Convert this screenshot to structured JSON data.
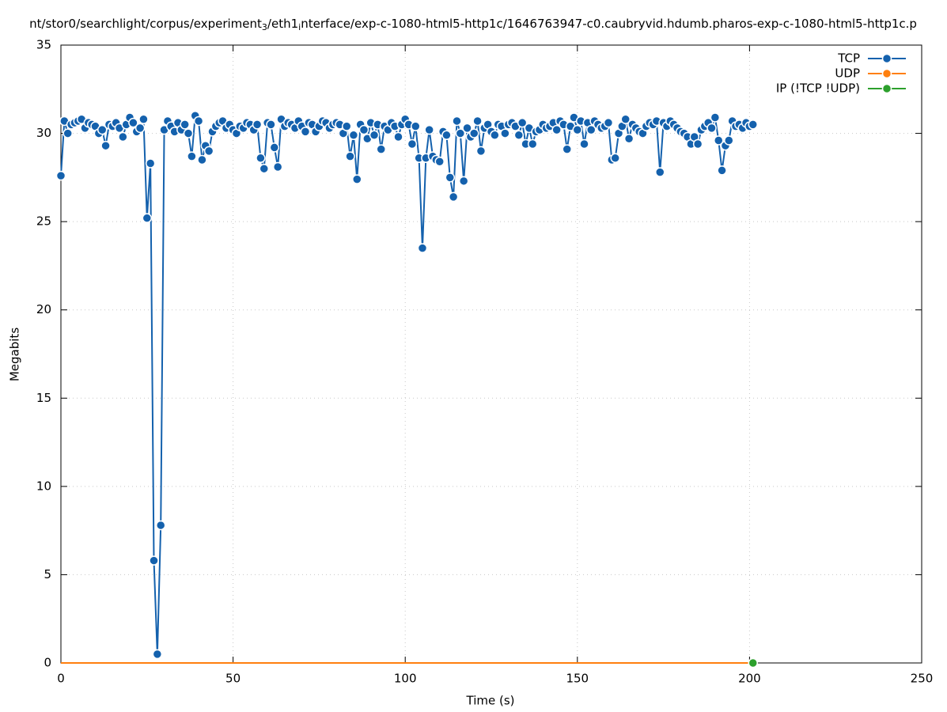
{
  "chart_data": {
    "type": "line",
    "title_parts": [
      "nt/stor0/searchlight/corpus/experiment",
      "3",
      "/eth1",
      "i",
      "nterface/exp-c-1080-html5-http1c/1646763947-c0.caubryvid.hdumb.pharos-exp-c-1080-html5-http1c.p"
    ],
    "xlabel": "Time (s)",
    "ylabel": "Megabits",
    "xlim": [
      0,
      250
    ],
    "xticks": [
      0,
      50,
      100,
      150,
      200,
      250
    ],
    "ylim": [
      0,
      35
    ],
    "yticks": [
      0,
      5,
      10,
      15,
      20,
      25,
      30,
      35
    ],
    "grid": true,
    "legend": "top-right",
    "x": [
      0,
      1,
      2,
      3,
      4,
      5,
      6,
      7,
      8,
      9,
      10,
      11,
      12,
      13,
      14,
      15,
      16,
      17,
      18,
      19,
      20,
      21,
      22,
      23,
      24,
      25,
      26,
      27,
      28,
      29,
      30,
      31,
      32,
      33,
      34,
      35,
      36,
      37,
      38,
      39,
      40,
      41,
      42,
      43,
      44,
      45,
      46,
      47,
      48,
      49,
      50,
      51,
      52,
      53,
      54,
      55,
      56,
      57,
      58,
      59,
      60,
      61,
      62,
      63,
      64,
      65,
      66,
      67,
      68,
      69,
      70,
      71,
      72,
      73,
      74,
      75,
      76,
      77,
      78,
      79,
      80,
      81,
      82,
      83,
      84,
      85,
      86,
      87,
      88,
      89,
      90,
      91,
      92,
      93,
      94,
      95,
      96,
      97,
      98,
      99,
      100,
      101,
      102,
      103,
      104,
      105,
      106,
      107,
      108,
      109,
      110,
      111,
      112,
      113,
      114,
      115,
      116,
      117,
      118,
      119,
      120,
      121,
      122,
      123,
      124,
      125,
      126,
      127,
      128,
      129,
      130,
      131,
      132,
      133,
      134,
      135,
      136,
      137,
      138,
      139,
      140,
      141,
      142,
      143,
      144,
      145,
      146,
      147,
      148,
      149,
      150,
      151,
      152,
      153,
      154,
      155,
      156,
      157,
      158,
      159,
      160,
      161,
      162,
      163,
      164,
      165,
      166,
      167,
      168,
      169,
      170,
      171,
      172,
      173,
      174,
      175,
      176,
      177,
      178,
      179,
      180,
      181,
      182,
      183,
      184,
      185,
      186,
      187,
      188,
      189,
      190,
      191,
      192,
      193,
      194,
      195,
      196,
      197,
      198,
      199,
      200,
      201
    ],
    "series": [
      {
        "name": "TCP",
        "color": "#1461ad",
        "markers": true,
        "values": [
          27.6,
          30.7,
          30.0,
          30.5,
          30.6,
          30.7,
          30.8,
          30.3,
          30.6,
          30.5,
          30.4,
          30.0,
          30.2,
          29.3,
          30.5,
          30.4,
          30.6,
          30.3,
          29.8,
          30.5,
          30.9,
          30.6,
          30.1,
          30.3,
          30.8,
          25.2,
          28.3,
          5.8,
          0.5,
          7.8,
          30.2,
          30.7,
          30.4,
          30.1,
          30.6,
          30.2,
          30.5,
          30.0,
          28.7,
          31.0,
          30.7,
          28.5,
          29.3,
          29.0,
          30.1,
          30.4,
          30.6,
          30.7,
          30.3,
          30.5,
          30.2,
          30.0,
          30.4,
          30.3,
          30.6,
          30.5,
          30.2,
          30.5,
          28.6,
          28.0,
          30.6,
          30.5,
          29.2,
          28.1,
          30.8,
          30.4,
          30.6,
          30.5,
          30.3,
          30.7,
          30.4,
          30.1,
          30.6,
          30.5,
          30.1,
          30.4,
          30.7,
          30.6,
          30.3,
          30.5,
          30.6,
          30.5,
          30.0,
          30.4,
          28.7,
          29.9,
          27.4,
          30.5,
          30.2,
          29.7,
          30.6,
          29.9,
          30.5,
          29.1,
          30.4,
          30.2,
          30.6,
          30.4,
          29.8,
          30.5,
          30.8,
          30.5,
          29.4,
          30.4,
          28.6,
          23.5,
          28.6,
          30.2,
          28.7,
          28.5,
          28.4,
          30.1,
          29.9,
          27.5,
          26.4,
          30.7,
          30.0,
          27.3,
          30.3,
          29.8,
          30.0,
          30.7,
          29.0,
          30.3,
          30.5,
          30.1,
          29.9,
          30.5,
          30.4,
          30.0,
          30.5,
          30.6,
          30.4,
          29.9,
          30.6,
          29.4,
          30.3,
          29.4,
          30.1,
          30.2,
          30.5,
          30.3,
          30.4,
          30.6,
          30.2,
          30.7,
          30.5,
          29.1,
          30.4,
          30.9,
          30.2,
          30.7,
          29.4,
          30.6,
          30.2,
          30.7,
          30.5,
          30.3,
          30.4,
          30.6,
          28.5,
          28.6,
          30.0,
          30.4,
          30.8,
          29.7,
          30.5,
          30.3,
          30.1,
          30.0,
          30.4,
          30.6,
          30.5,
          30.7,
          27.8,
          30.6,
          30.4,
          30.7,
          30.5,
          30.3,
          30.1,
          30.0,
          29.8,
          29.4,
          29.8,
          29.4,
          30.2,
          30.4,
          30.6,
          30.3,
          30.9,
          29.6,
          27.9,
          29.3,
          29.6,
          30.7,
          30.4,
          30.5,
          30.3,
          30.6,
          30.4,
          30.5
        ]
      },
      {
        "name": "UDP",
        "color": "#ff7f0e",
        "markers": false,
        "values": [
          0,
          0,
          0,
          0,
          0,
          0,
          0,
          0,
          0,
          0,
          0,
          0,
          0,
          0,
          0,
          0,
          0,
          0,
          0,
          0,
          0,
          0,
          0,
          0,
          0,
          0,
          0,
          0,
          0,
          0,
          0,
          0,
          0,
          0,
          0,
          0,
          0,
          0,
          0,
          0,
          0,
          0,
          0,
          0,
          0,
          0,
          0,
          0,
          0,
          0,
          0,
          0,
          0,
          0,
          0,
          0,
          0,
          0,
          0,
          0,
          0,
          0,
          0,
          0,
          0,
          0,
          0,
          0,
          0,
          0,
          0,
          0,
          0,
          0,
          0,
          0,
          0,
          0,
          0,
          0,
          0,
          0,
          0,
          0,
          0,
          0,
          0,
          0,
          0,
          0,
          0,
          0,
          0,
          0,
          0,
          0,
          0,
          0,
          0,
          0,
          0,
          0,
          0,
          0,
          0,
          0,
          0,
          0,
          0,
          0,
          0,
          0,
          0,
          0,
          0,
          0,
          0,
          0,
          0,
          0,
          0,
          0,
          0,
          0,
          0,
          0,
          0,
          0,
          0,
          0,
          0,
          0,
          0,
          0,
          0,
          0,
          0,
          0,
          0,
          0,
          0,
          0,
          0,
          0,
          0,
          0,
          0,
          0,
          0,
          0,
          0,
          0,
          0,
          0,
          0,
          0,
          0,
          0,
          0,
          0,
          0,
          0,
          0,
          0,
          0,
          0,
          0,
          0,
          0,
          0,
          0,
          0,
          0,
          0,
          0,
          0,
          0,
          0,
          0,
          0,
          0,
          0,
          0,
          0,
          0,
          0,
          0,
          0,
          0,
          0,
          0,
          0,
          0,
          0,
          0,
          0,
          0,
          0,
          0,
          0,
          0,
          0
        ]
      },
      {
        "name": "IP (!TCP  !UDP)",
        "color": "#2ca02c",
        "markers": false,
        "values": [
          0,
          0,
          0,
          0,
          0,
          0,
          0,
          0,
          0,
          0,
          0,
          0,
          0,
          0,
          0,
          0,
          0,
          0,
          0,
          0,
          0,
          0,
          0,
          0,
          0,
          0,
          0,
          0,
          0,
          0,
          0,
          0,
          0,
          0,
          0,
          0,
          0,
          0,
          0,
          0,
          0,
          0,
          0,
          0,
          0,
          0,
          0,
          0,
          0,
          0,
          0,
          0,
          0,
          0,
          0,
          0,
          0,
          0,
          0,
          0,
          0,
          0,
          0,
          0,
          0,
          0,
          0,
          0,
          0,
          0,
          0,
          0,
          0,
          0,
          0,
          0,
          0,
          0,
          0,
          0,
          0,
          0,
          0,
          0,
          0,
          0,
          0,
          0,
          0,
          0,
          0,
          0,
          0,
          0,
          0,
          0,
          0,
          0,
          0,
          0,
          0,
          0,
          0,
          0,
          0,
          0,
          0,
          0,
          0,
          0,
          0,
          0,
          0,
          0,
          0,
          0,
          0,
          0,
          0,
          0,
          0,
          0,
          0,
          0,
          0,
          0,
          0,
          0,
          0,
          0,
          0,
          0,
          0,
          0,
          0,
          0,
          0,
          0,
          0,
          0,
          0,
          0,
          0,
          0,
          0,
          0,
          0,
          0,
          0,
          0,
          0,
          0,
          0,
          0,
          0,
          0,
          0,
          0,
          0,
          0,
          0,
          0,
          0,
          0,
          0,
          0,
          0,
          0,
          0,
          0,
          0,
          0,
          0,
          0,
          0,
          0,
          0,
          0,
          0,
          0,
          0,
          0,
          0,
          0,
          0,
          0,
          0,
          0,
          0,
          0,
          0,
          0,
          0,
          0,
          0,
          0,
          0,
          0,
          0,
          0,
          0,
          0
        ]
      }
    ]
  }
}
